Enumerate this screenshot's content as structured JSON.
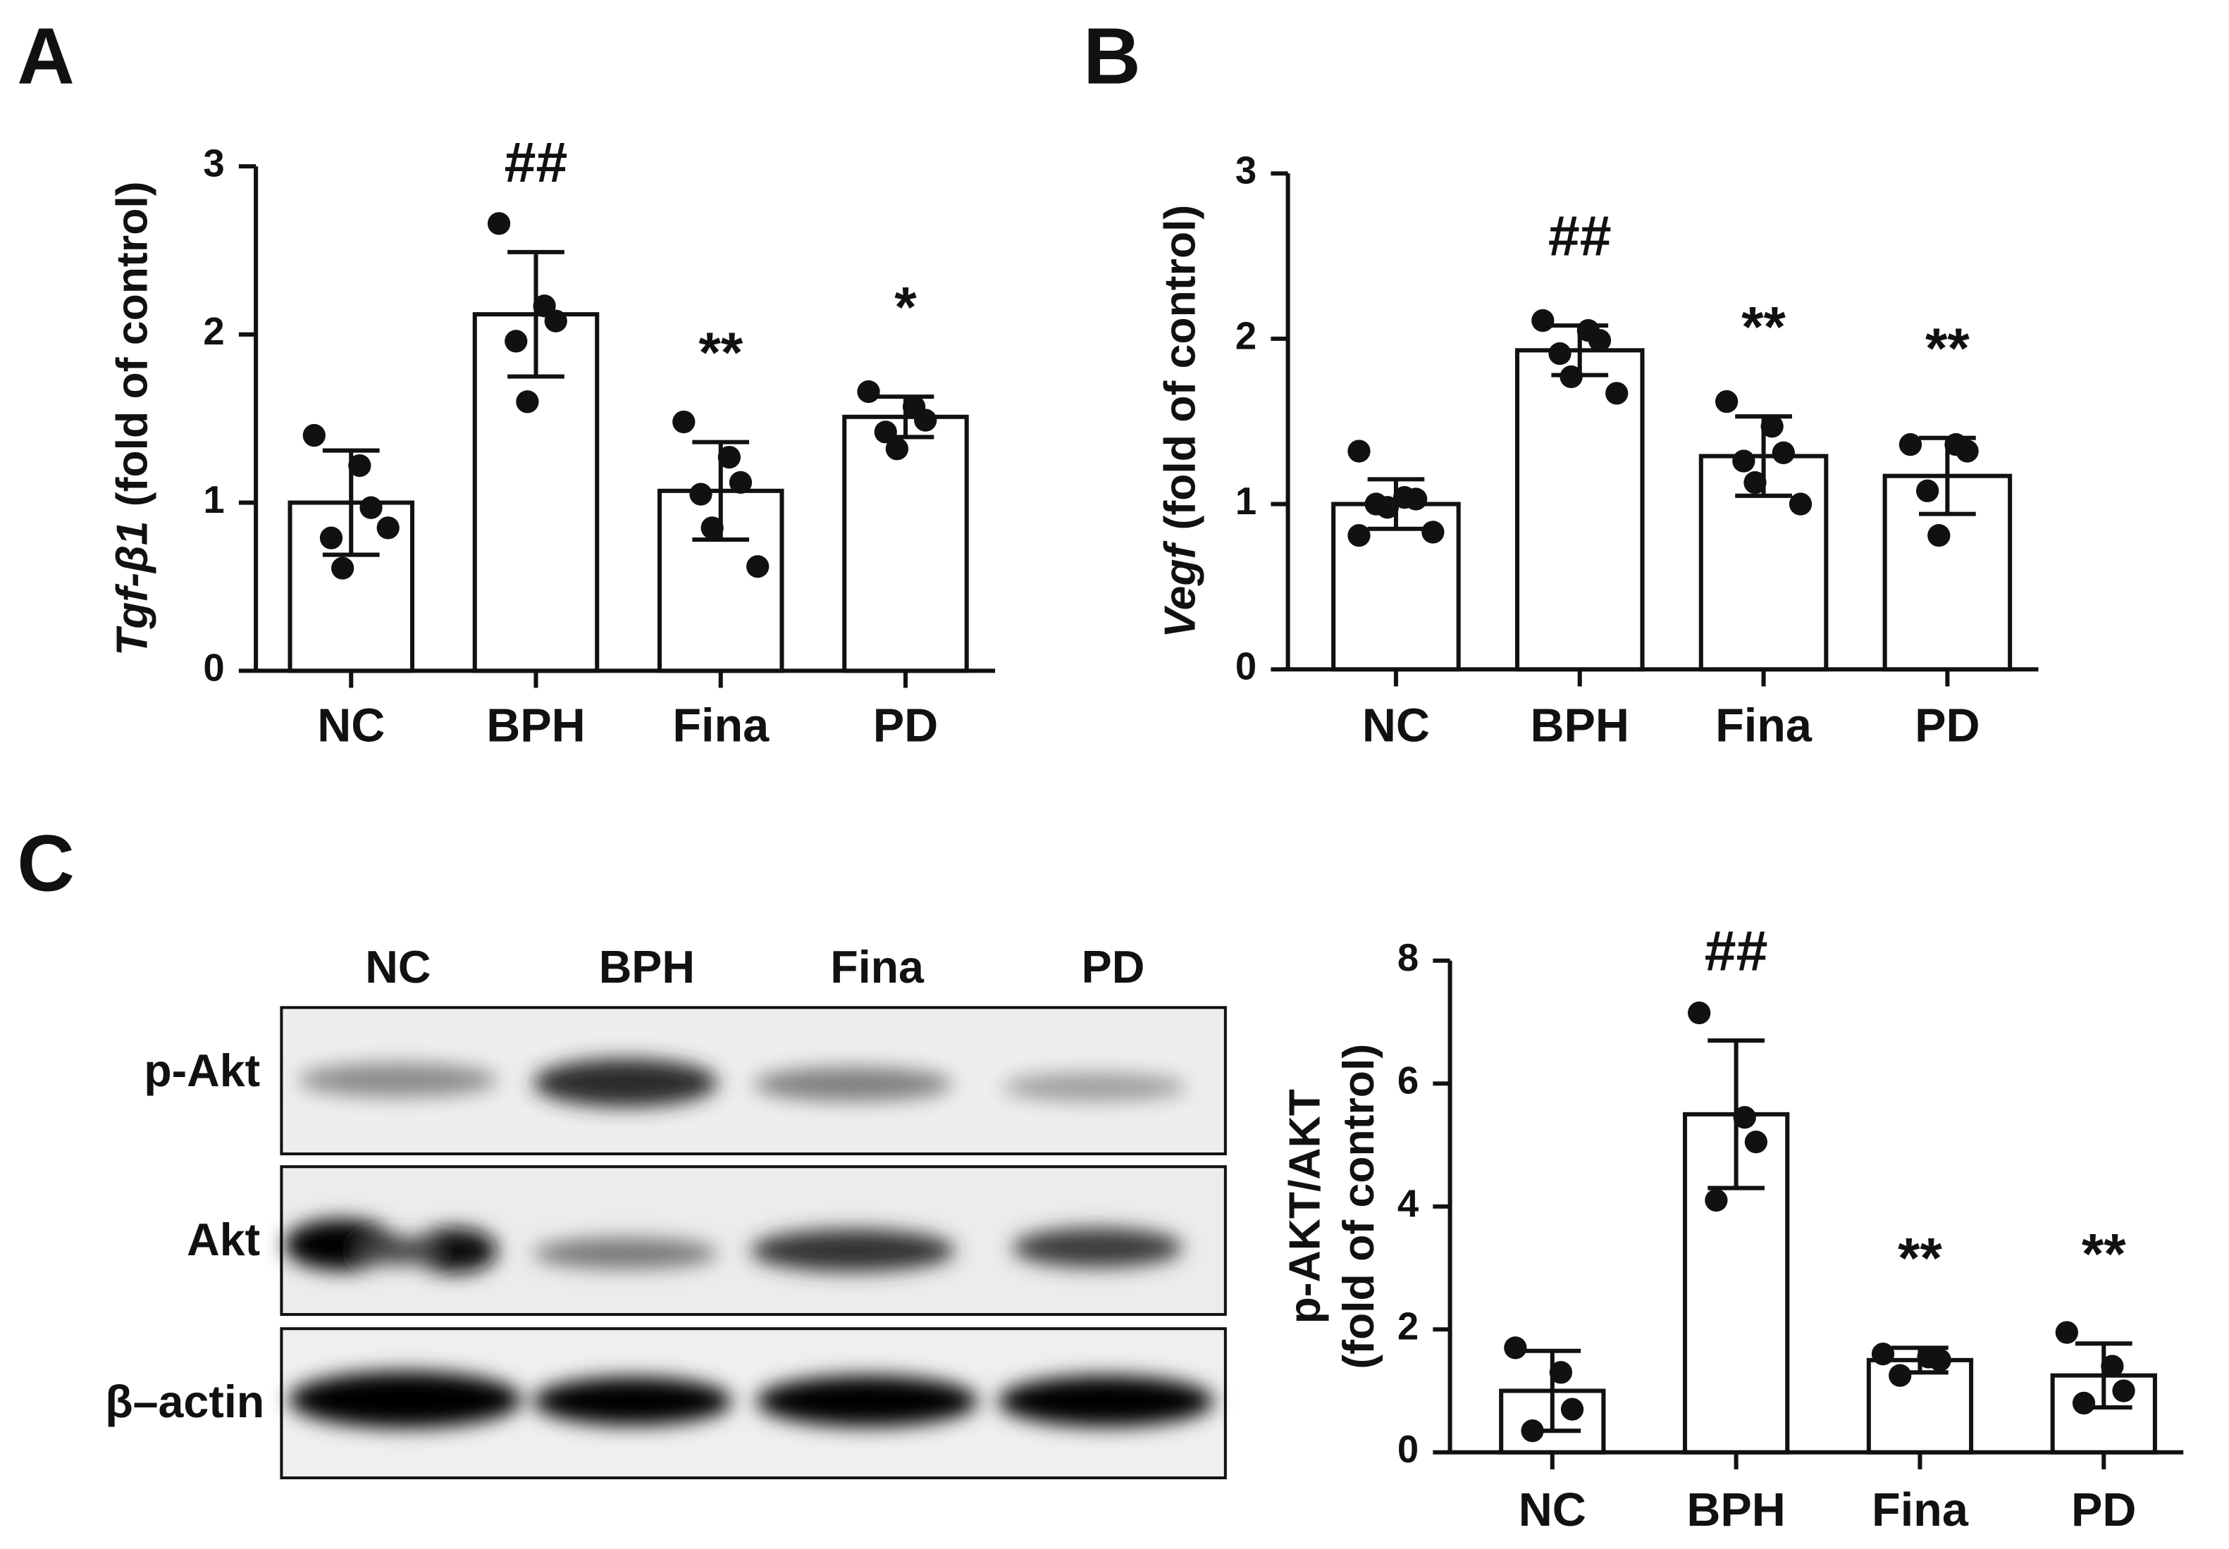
{
  "panel_labels": [
    "A",
    "B",
    "C"
  ],
  "blot": {
    "lanes": [
      "NC",
      "BPH",
      "Fina",
      "PD"
    ],
    "rows": [
      "p-Akt",
      "Akt",
      "β–actin"
    ]
  },
  "chart_data": [
    {
      "type": "bar",
      "y_label_gene": "Tgf-β1",
      "y_label": "(fold of control)",
      "categories": [
        "NC",
        "BPH",
        "Fina",
        "PD"
      ],
      "values": [
        1.0,
        2.12,
        1.07,
        1.51
      ],
      "errors": [
        0.31,
        0.37,
        0.29,
        0.12
      ],
      "points": [
        [
          1.4,
          1.22,
          0.97,
          0.79,
          0.61,
          0.85
        ],
        [
          2.66,
          2.17,
          2.08,
          1.96,
          1.6
        ],
        [
          1.48,
          1.27,
          1.12,
          1.05,
          0.85,
          0.62
        ],
        [
          1.66,
          1.57,
          1.49,
          1.42,
          1.32
        ]
      ],
      "annotations": [
        null,
        "##",
        "**",
        "*"
      ],
      "ylim": [
        0,
        3
      ],
      "yticks": [
        0,
        1,
        2,
        3
      ],
      "color": "#ffffff"
    },
    {
      "type": "bar",
      "y_label_gene": "Vegf",
      "y_label": "(fold of control)",
      "categories": [
        "NC",
        "BPH",
        "Fina",
        "PD"
      ],
      "values": [
        1.0,
        1.93,
        1.29,
        1.17
      ],
      "errors": [
        0.15,
        0.15,
        0.24,
        0.23
      ],
      "points": [
        [
          1.32,
          1.04,
          1.03,
          1.0,
          0.98,
          0.83,
          0.81
        ],
        [
          2.11,
          2.05,
          1.99,
          1.91,
          1.77,
          1.67
        ],
        [
          1.62,
          1.47,
          1.31,
          1.26,
          1.13,
          1.0
        ],
        [
          1.36,
          1.36,
          1.32,
          1.08,
          0.81
        ]
      ],
      "annotations": [
        null,
        "##",
        "**",
        "**"
      ],
      "ylim": [
        0,
        3
      ],
      "yticks": [
        0,
        1,
        2,
        3
      ],
      "color": "#ffffff"
    },
    {
      "type": "bar",
      "y_label_lines": [
        "p-AKT/AKT",
        "(fold of control)"
      ],
      "categories": [
        "NC",
        "BPH",
        "Fina",
        "PD"
      ],
      "values": [
        1.0,
        5.5,
        1.5,
        1.25
      ],
      "errors": [
        0.65,
        1.2,
        0.2,
        0.52
      ],
      "points": [
        [
          1.7,
          1.3,
          0.7,
          0.35
        ],
        [
          7.15,
          5.45,
          5.05,
          4.1
        ],
        [
          1.6,
          1.55,
          1.5,
          1.25
        ],
        [
          1.95,
          1.4,
          1.0,
          0.8
        ]
      ],
      "annotations": [
        null,
        "##",
        "**",
        "**"
      ],
      "ylim": [
        0,
        8
      ],
      "yticks": [
        0,
        2,
        4,
        6,
        8
      ],
      "color": "#ffffff"
    }
  ]
}
